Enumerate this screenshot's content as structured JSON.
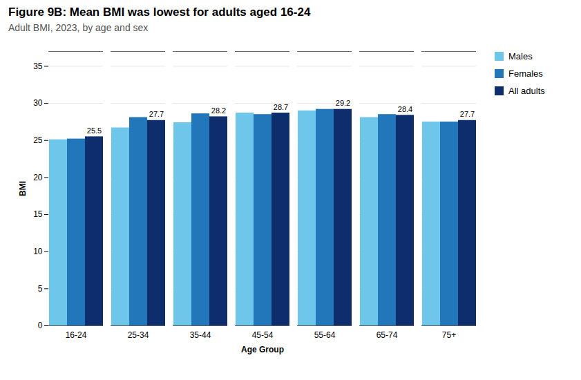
{
  "chart_data": {
    "type": "bar",
    "title": "Figure 9B: Mean BMI was lowest for adults aged 16-24",
    "subtitle": "Adult BMI, 2023, by age and sex",
    "xlabel": "Age Group",
    "ylabel": "BMI",
    "categories": [
      "16-24",
      "25-34",
      "35-44",
      "45-54",
      "55-64",
      "65-74",
      "75+"
    ],
    "series": [
      {
        "name": "Males",
        "color": "#6EC6EA",
        "values": [
          25.1,
          26.7,
          27.4,
          28.7,
          29.0,
          28.1,
          27.5
        ]
      },
      {
        "name": "Females",
        "color": "#2277BB",
        "values": [
          25.2,
          28.1,
          28.6,
          28.5,
          29.2,
          28.5,
          27.5
        ]
      },
      {
        "name": "All adults",
        "color": "#0D2D6C",
        "values": [
          25.5,
          27.7,
          28.2,
          28.7,
          29.2,
          28.4,
          27.7
        ],
        "data_labels": true
      }
    ],
    "ylim": [
      0,
      37
    ],
    "yticks": [
      0,
      5,
      10,
      15,
      20,
      25,
      30,
      35
    ],
    "grid": true,
    "legend": "upper right"
  }
}
